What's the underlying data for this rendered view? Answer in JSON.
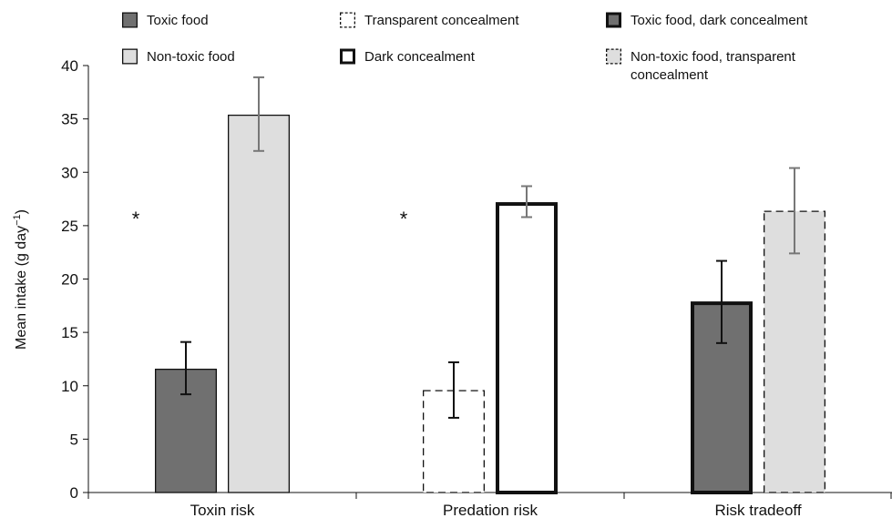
{
  "chart_data": {
    "type": "bar",
    "categories": [
      "Toxin risk",
      "Predation risk",
      "Risk tradeoff"
    ],
    "ylabel": "Mean intake (g day",
    "ylabel_sup": "−1",
    "ylabel_close": ")",
    "ylim": [
      0,
      40
    ],
    "yticks": [
      0,
      5,
      10,
      15,
      20,
      25,
      30,
      35,
      40
    ],
    "grid": false,
    "legend_position": "top",
    "bars": [
      {
        "category": "Toxin risk",
        "series": "Toxic food",
        "value": 11.6,
        "err_low": 9.2,
        "err_high": 14.1,
        "fill": "#707070",
        "stroke": "#111111",
        "stroke_style": "solid",
        "stroke_weight": "thin",
        "err_color": "#111111"
      },
      {
        "category": "Toxin risk",
        "series": "Non-toxic food",
        "value": 35.4,
        "err_low": 32.0,
        "err_high": 38.9,
        "fill": "#dedede",
        "stroke": "#111111",
        "stroke_style": "solid",
        "stroke_weight": "thin",
        "err_color": "#777777"
      },
      {
        "category": "Predation risk",
        "series": "Transparent concealment",
        "value": 9.6,
        "err_low": 7.0,
        "err_high": 12.2,
        "fill": "#ffffff",
        "stroke": "#111111",
        "stroke_style": "dashed",
        "stroke_weight": "thin",
        "err_color": "#111111"
      },
      {
        "category": "Predation risk",
        "series": "Dark concealment",
        "value": 27.2,
        "err_low": 25.8,
        "err_high": 28.7,
        "fill": "#ffffff",
        "stroke": "#111111",
        "stroke_style": "solid",
        "stroke_weight": "thick",
        "err_color": "#777777"
      },
      {
        "category": "Risk tradeoff",
        "series": "Toxic food, dark concealment",
        "value": 17.9,
        "err_low": 14.0,
        "err_high": 21.7,
        "fill": "#707070",
        "stroke": "#111111",
        "stroke_style": "solid",
        "stroke_weight": "thick",
        "err_color": "#111111"
      },
      {
        "category": "Risk tradeoff",
        "series": "Non-toxic food, transparent concealment",
        "value": 26.4,
        "err_low": 22.4,
        "err_high": 30.4,
        "fill": "#dedede",
        "stroke": "#111111",
        "stroke_style": "dashed",
        "stroke_weight": "thin",
        "err_color": "#777777"
      }
    ],
    "annotations": [
      {
        "category": "Toxin risk",
        "text": "*",
        "y": 26.2
      },
      {
        "category": "Predation risk",
        "text": "*",
        "y": 26.2
      }
    ],
    "legend": [
      {
        "lines": [
          "Toxic food"
        ],
        "fill": "#707070",
        "stroke_style": "solid",
        "stroke_weight": "thin"
      },
      {
        "lines": [
          "Transparent concealment"
        ],
        "fill": "#ffffff",
        "stroke_style": "dashed",
        "stroke_weight": "thin"
      },
      {
        "lines": [
          "Toxic food, dark concealment"
        ],
        "fill": "#707070",
        "stroke_style": "solid",
        "stroke_weight": "thick"
      },
      {
        "lines": [
          "Non-toxic food"
        ],
        "fill": "#dedede",
        "stroke_style": "solid",
        "stroke_weight": "thin"
      },
      {
        "lines": [
          "Dark concealment"
        ],
        "fill": "#ffffff",
        "stroke_style": "solid",
        "stroke_weight": "thick"
      },
      {
        "lines": [
          "Non-toxic food, transparent",
          "concealment"
        ],
        "fill": "#dedede",
        "stroke_style": "dashed",
        "stroke_weight": "thin"
      }
    ]
  }
}
